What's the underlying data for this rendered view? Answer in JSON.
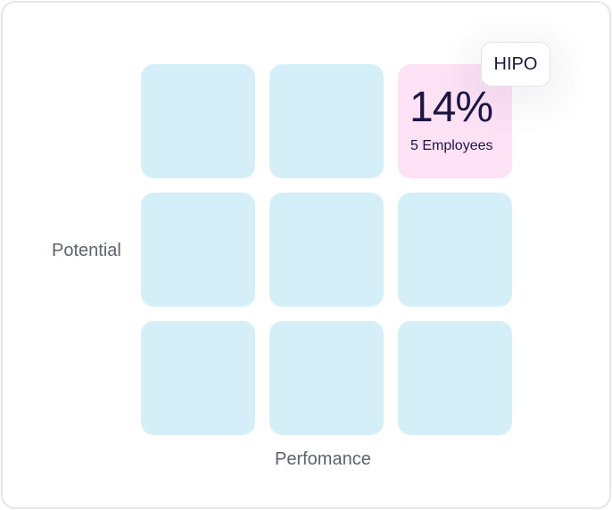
{
  "grid": {
    "rows": 3,
    "columns": 3,
    "highlighted_cell": {
      "row": 1,
      "column": 3,
      "percentage": "14%",
      "employees_label": "5 Employees",
      "badge": "HIPO"
    }
  },
  "axes": {
    "y_label": "Potential",
    "x_label": "Perfomance"
  },
  "colors": {
    "cell": "#d4eff8",
    "highlight_cell": "#fde2f6",
    "text_dark": "#1b1646",
    "axis_text": "#5e6270",
    "border": "#e4e6ea"
  }
}
